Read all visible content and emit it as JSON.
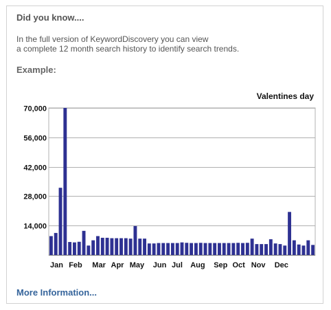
{
  "panel": {
    "heading": "Did you know....",
    "description_line1": "In the full version of KeywordDiscovery you can view",
    "description_line2": "a complete 12 month search history to identify search trends.",
    "example_label": "Example:",
    "more_link": "More Information..."
  },
  "colors": {
    "bar": "#2e3192",
    "grid": "#b0b0b0",
    "link": "#35649b"
  },
  "chart_data": {
    "type": "bar",
    "title": "Valentines day",
    "xlabel": "",
    "ylabel": "",
    "ylim": [
      0,
      70000
    ],
    "y_ticks": [
      "70,000",
      "56,000",
      "42,000",
      "28,000",
      "14,000"
    ],
    "y_tick_values": [
      70000,
      56000,
      42000,
      28000,
      14000
    ],
    "grid": true,
    "month_labels": [
      "Jan",
      "Feb",
      "Mar",
      "Apr",
      "May",
      "Jun",
      "Jul",
      "Aug",
      "Sep",
      "Oct",
      "Nov",
      "Dec"
    ],
    "month_start_index": [
      0,
      4,
      9,
      13,
      17,
      22,
      26,
      30,
      35,
      39,
      43,
      48
    ],
    "values": [
      9000,
      10500,
      32000,
      70000,
      6200,
      6000,
      6300,
      11500,
      4500,
      7000,
      9000,
      8200,
      8200,
      8000,
      8000,
      8000,
      8000,
      7800,
      13800,
      7800,
      7800,
      5500,
      5500,
      5700,
      5700,
      5700,
      5700,
      5700,
      6000,
      5800,
      5700,
      5700,
      5800,
      5700,
      5700,
      5700,
      5700,
      5700,
      5700,
      5700,
      5800,
      5700,
      5800,
      7800,
      5200,
      5200,
      5200,
      7500,
      5500,
      5200,
      4500,
      20500,
      7000,
      5000,
      4500,
      7000,
      4800
    ]
  }
}
